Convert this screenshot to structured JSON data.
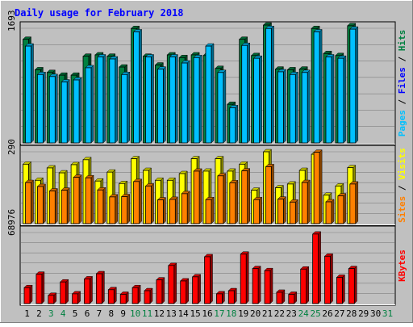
{
  "chart_data": {
    "type": "bar",
    "title": "Daily usage for February 2018",
    "categories": [
      "1",
      "2",
      "3",
      "4",
      "5",
      "6",
      "7",
      "8",
      "9",
      "10",
      "11",
      "12",
      "13",
      "14",
      "15",
      "16",
      "17",
      "18",
      "19",
      "20",
      "21",
      "22",
      "23",
      "24",
      "25",
      "26",
      "27",
      "28",
      "29",
      "30",
      "31"
    ],
    "weekend_days": [
      "3",
      "4",
      "10",
      "11",
      "17",
      "18",
      "24",
      "25",
      "31"
    ],
    "colors": {
      "background": "#c0c0c0",
      "title": "#0000ff",
      "hits": "#008040",
      "files": "#00c0ff",
      "pages": "#00c0ff",
      "visits": "#ffff00",
      "sites": "#ff8000",
      "kbytes": "#ff0000",
      "weekday_label": "#000000",
      "weekend_label": "#008040"
    },
    "panels": [
      {
        "id": "hits-files-pages",
        "ymax_label": "1693",
        "ymax": 1693,
        "axis_label_parts": [
          {
            "text": "Pages",
            "color": "#00c0ff"
          },
          {
            "text": " / ",
            "color": "#000000"
          },
          {
            "text": "Files",
            "color": "#0000ff"
          },
          {
            "text": " / ",
            "color": "#000000"
          },
          {
            "text": "Hits",
            "color": "#008040"
          }
        ],
        "series": [
          {
            "name": "Hits",
            "color": "#008040",
            "values": [
              1530,
              1080,
              1040,
              1000,
              1000,
              1280,
              1300,
              1280,
              1120,
              1690,
              1280,
              1150,
              1300,
              1260,
              1300,
              1290,
              1100,
              570,
              1530,
              1290,
              1740,
              1090,
              1080,
              1090,
              1690,
              1320,
              1290,
              1730,
              0,
              0,
              0
            ]
          },
          {
            "name": "Files",
            "color": "#00c0ff",
            "values": [
              1430,
              1010,
              980,
              900,
              930,
              1110,
              1270,
              1240,
              1010,
              1640,
              1270,
              1090,
              1270,
              1180,
              1260,
              1430,
              1040,
              520,
              1440,
              1250,
              1690,
              1050,
              1010,
              1040,
              1640,
              1270,
              1250,
              1680,
              0,
              0,
              0
            ]
          }
        ]
      },
      {
        "id": "visits-sites",
        "ymax_label": "290",
        "ymax": 290,
        "axis_label_parts": [
          {
            "text": "Sites",
            "color": "#ff8000"
          },
          {
            "text": " / ",
            "color": "#000000"
          },
          {
            "text": "Visits",
            "color": "#ffff00"
          }
        ],
        "series": [
          {
            "name": "Visits",
            "color": "#ffff00",
            "values": [
              240,
              175,
              225,
              205,
              238,
              258,
              172,
              208,
              162,
              262,
              215,
              175,
              175,
              202,
              262,
              212,
              262,
              212,
              240,
              135,
              290,
              145,
              160,
              215,
              280,
              115,
              152,
              226,
              0,
              0,
              0
            ]
          },
          {
            "name": "Sites",
            "color": "#ff8000",
            "values": [
              166,
              150,
              132,
              135,
              187,
              185,
              136,
              108,
              109,
              170,
              152,
              96,
              98,
              121,
              212,
              97,
              193,
              165,
              213,
              97,
              230,
              99,
              87,
              166,
              288,
              88,
              112,
              160,
              0,
              0,
              0
            ]
          }
        ]
      },
      {
        "id": "kbytes",
        "ymax_label": "68976",
        "ymax": 68976,
        "axis_label_parts": [
          {
            "text": "KBytes",
            "color": "#ff0000"
          }
        ],
        "series": [
          {
            "name": "KBytes",
            "color": "#ff0000",
            "values": [
              15500,
              28500,
              8000,
              21000,
              9500,
              24000,
              29000,
              13500,
              9000,
              15500,
              12500,
              23000,
              37000,
              22000,
              26000,
              45500,
              9500,
              12500,
              48000,
              34000,
              32000,
              11000,
              9000,
              33500,
              67500,
              46000,
              25500,
              34000,
              0,
              0,
              0
            ]
          }
        ]
      }
    ]
  }
}
